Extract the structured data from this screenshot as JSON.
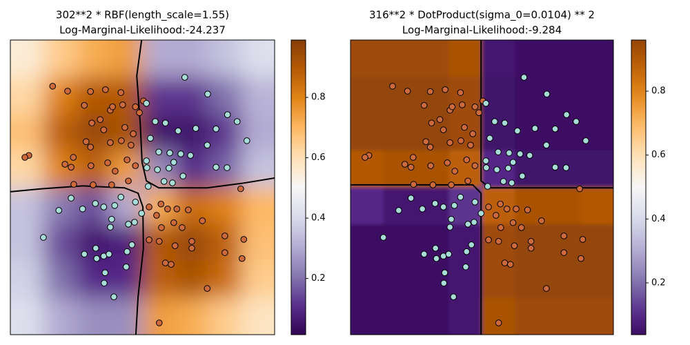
{
  "chart_data": [
    {
      "type": "heatmap",
      "title": [
        "302**2 * RBF(length_scale=1.55)",
        "Log-Marginal-Likelihood:-24.237"
      ],
      "xlim": [
        -3,
        3
      ],
      "ylim": [
        -3,
        3
      ],
      "colormap": "PuOr_r",
      "z": [
        [
          0.55,
          0.65,
          0.72,
          0.75,
          0.3,
          0.3,
          0.35,
          0.42
        ],
        [
          0.62,
          0.8,
          0.9,
          0.9,
          0.12,
          0.12,
          0.2,
          0.32
        ],
        [
          0.68,
          0.88,
          0.95,
          0.92,
          0.05,
          0.05,
          0.12,
          0.3
        ],
        [
          0.62,
          0.8,
          0.88,
          0.75,
          0.25,
          0.1,
          0.18,
          0.35
        ],
        [
          0.35,
          0.22,
          0.15,
          0.3,
          0.72,
          0.85,
          0.8,
          0.7
        ],
        [
          0.35,
          0.15,
          0.06,
          0.08,
          0.9,
          0.95,
          0.88,
          0.68
        ],
        [
          0.38,
          0.2,
          0.1,
          0.1,
          0.88,
          0.92,
          0.85,
          0.65
        ],
        [
          0.42,
          0.3,
          0.25,
          0.25,
          0.75,
          0.72,
          0.65,
          0.58
        ]
      ],
      "clim": [
        0.014,
        0.99
      ],
      "cticks": [
        0.2,
        0.4,
        0.6,
        0.8
      ],
      "contours": [
        {
          "x": [
            -0.02,
            -0.13,
            -0.05,
            -0.01,
            0.09,
            0.37,
            1.47,
            2.25,
            3.0
          ],
          "y": [
            3.0,
            2.27,
            1.29,
            0.51,
            0.13,
            -0.01,
            -0.01,
            0.08,
            0.19
          ]
        },
        {
          "x": [
            -3.0,
            -2.29,
            -1.36,
            -0.41,
            -0.1,
            0.01,
            0.02,
            -0.1,
            -0.15
          ],
          "y": [
            -0.09,
            -0.03,
            0.03,
            -0.01,
            -0.12,
            -0.4,
            -1.24,
            -2.23,
            -3.0
          ]
        }
      ],
      "series": [
        {
          "color": "#cc6a3c",
          "x": [
            -2.04,
            -1.7,
            -1.18,
            -0.84,
            -0.49,
            -1.32,
            -0.73,
            -0.68,
            -0.45,
            -0.16,
            0.02,
            -0.07,
            -0.96,
            -1.15,
            -0.88,
            -0.4,
            -0.21,
            -1.28,
            -1.18,
            -0.73,
            -0.48,
            -0.26,
            -2.58,
            -2.67,
            -1.57,
            -1.76,
            -1.62,
            -0.79,
            -1.17,
            -0.62,
            -0.35,
            -0.16,
            -1.56,
            -1.12,
            -0.7,
            -0.32,
            2.23,
            0.15,
            0.42,
            0.57,
            0.78,
            1.04,
            1.36,
            0.71,
            0.43,
            0.32,
            0.9,
            0.38,
            0.74,
            1.12,
            1.12,
            1.87,
            2.3,
            1.87,
            2.26,
            0.52,
            0.65,
            1.47,
            0.38,
            0.15
          ],
          "y": [
            2.06,
            1.96,
            1.95,
            1.99,
            1.93,
            1.67,
            1.57,
            1.64,
            1.68,
            1.64,
            1.76,
            1.52,
            1.38,
            1.31,
            1.17,
            1.22,
            1.09,
            0.93,
            0.82,
            0.91,
            0.95,
            0.86,
            0.65,
            0.61,
            0.61,
            0.47,
            0.41,
            0.5,
            0.44,
            0.33,
            0.56,
            0.44,
            0.06,
            0.05,
            0.05,
            0.13,
            -0.03,
            -0.4,
            -0.34,
            -0.44,
            -0.44,
            -0.46,
            -0.68,
            -0.72,
            -0.82,
            -0.57,
            -0.82,
            -1.1,
            -1.19,
            -1.1,
            -1.24,
            -0.99,
            -1.06,
            -1.33,
            -1.45,
            -1.54,
            -1.57,
            -2.06,
            -2.76,
            -1.07
          ]
        },
        {
          "color": "#a8dcd8",
          "x": [
            0.96,
            1.48,
            0.09,
            1.93,
            2.15,
            0.29,
            0.52,
            0.81,
            1.21,
            1.67,
            0.18,
            1.47,
            2.37,
            0.37,
            0.62,
            0.87,
            0.71,
            1.09,
            0.09,
            0.1,
            0.34,
            0.6,
            1.92,
            1.67,
            0.92,
            0.49,
            0.68,
            0.13,
            -1.62,
            -1.9,
            -1.36,
            -1.07,
            -0.88,
            -0.63,
            -0.49,
            -0.16,
            -0.7,
            -0.73,
            -0.32,
            -0.18,
            -0.02,
            -2.25,
            -1.06,
            -1.32,
            -1.04,
            -0.88,
            -0.76,
            -0.35,
            -0.24,
            -0.37,
            -0.85,
            -0.87,
            -0.65
          ],
          "y": [
            2.24,
            1.9,
            1.71,
            1.48,
            1.34,
            1.34,
            1.31,
            1.15,
            1.2,
            1.19,
            1.0,
            0.86,
            0.95,
            0.72,
            0.7,
            0.68,
            0.51,
            0.65,
            0.54,
            0.4,
            0.36,
            0.39,
            0.4,
            0.41,
            0.23,
            0.12,
            0.09,
            0.02,
            -0.22,
            -0.47,
            -0.44,
            -0.33,
            -0.4,
            -0.37,
            -0.2,
            -0.3,
            -0.65,
            -0.81,
            -0.75,
            -0.71,
            -0.53,
            -1.02,
            -1.24,
            -1.36,
            -1.45,
            -1.4,
            -1.36,
            -1.31,
            -1.17,
            -1.62,
            -1.74,
            -1.95,
            -2.23
          ]
        }
      ]
    },
    {
      "type": "heatmap",
      "title": [
        "316**2 * DotProduct(sigma_0=0.0104) ** 2",
        "Log-Marginal-Likelihood:-9.284"
      ],
      "xlim": [
        -3,
        3
      ],
      "ylim": [
        -3,
        3
      ],
      "colormap": "PuOr_r",
      "z": [
        [
          0.94,
          0.94,
          0.94,
          0.92,
          0.06,
          0.04,
          0.04,
          0.04
        ],
        [
          0.96,
          0.96,
          0.96,
          0.94,
          0.05,
          0.04,
          0.04,
          0.04
        ],
        [
          0.96,
          0.96,
          0.96,
          0.94,
          0.05,
          0.04,
          0.04,
          0.04
        ],
        [
          0.9,
          0.92,
          0.92,
          0.88,
          0.1,
          0.05,
          0.05,
          0.05
        ],
        [
          0.1,
          0.06,
          0.06,
          0.12,
          0.88,
          0.92,
          0.92,
          0.9
        ],
        [
          0.04,
          0.04,
          0.04,
          0.06,
          0.94,
          0.96,
          0.96,
          0.96
        ],
        [
          0.04,
          0.04,
          0.04,
          0.06,
          0.94,
          0.96,
          0.96,
          0.96
        ],
        [
          0.04,
          0.04,
          0.04,
          0.06,
          0.92,
          0.94,
          0.94,
          0.94
        ]
      ],
      "clim": [
        0.038,
        0.96
      ],
      "cticks": [
        0.2,
        0.4,
        0.6,
        0.8
      ],
      "contours": [
        {
          "x": [
            -0.02,
            -0.02,
            0.18,
            3.0
          ],
          "y": [
            3.0,
            0.13,
            -0.01,
            -0.01
          ]
        },
        {
          "x": [
            -3.0,
            -0.21,
            -0.02,
            -0.02
          ],
          "y": [
            0.05,
            0.05,
            -0.12,
            -3.0
          ]
        }
      ],
      "series": [
        {
          "color": "#cc6a3c",
          "x": [
            -2.04,
            -1.7,
            -1.18,
            -0.84,
            -0.49,
            -1.32,
            -0.73,
            -0.68,
            -0.45,
            -0.16,
            0.02,
            -0.07,
            -0.96,
            -1.15,
            -0.88,
            -0.4,
            -0.21,
            -1.28,
            -1.18,
            -0.73,
            -0.48,
            -0.26,
            -2.58,
            -2.67,
            -1.57,
            -1.76,
            -1.62,
            -0.79,
            -1.17,
            -0.62,
            -0.35,
            -0.16,
            -1.56,
            -1.12,
            -0.7,
            -0.32,
            2.23,
            0.15,
            0.42,
            0.57,
            0.78,
            1.04,
            1.36,
            0.71,
            0.43,
            0.32,
            0.9,
            0.38,
            0.74,
            1.12,
            1.12,
            1.87,
            2.3,
            1.87,
            2.26,
            0.52,
            0.65,
            1.47,
            0.38,
            0.15
          ],
          "y": [
            2.06,
            1.96,
            1.95,
            1.99,
            1.93,
            1.67,
            1.57,
            1.64,
            1.68,
            1.64,
            1.76,
            1.52,
            1.38,
            1.31,
            1.17,
            1.22,
            1.09,
            0.93,
            0.82,
            0.91,
            0.95,
            0.86,
            0.65,
            0.61,
            0.61,
            0.47,
            0.41,
            0.5,
            0.44,
            0.33,
            0.56,
            0.44,
            0.06,
            0.05,
            0.05,
            0.13,
            -0.03,
            -0.4,
            -0.34,
            -0.44,
            -0.44,
            -0.46,
            -0.68,
            -0.72,
            -0.82,
            -0.57,
            -0.82,
            -1.1,
            -1.19,
            -1.1,
            -1.24,
            -0.99,
            -1.06,
            -1.33,
            -1.45,
            -1.54,
            -1.57,
            -2.06,
            -2.76,
            -1.07
          ]
        },
        {
          "color": "#a8dcd8",
          "x": [
            0.96,
            1.48,
            0.09,
            1.93,
            2.15,
            0.29,
            0.52,
            0.81,
            1.21,
            1.67,
            0.18,
            1.47,
            2.37,
            0.37,
            0.62,
            0.87,
            0.71,
            1.09,
            0.09,
            0.1,
            0.34,
            0.6,
            1.92,
            1.67,
            0.92,
            0.49,
            0.68,
            0.13,
            -1.62,
            -1.9,
            -1.36,
            -1.07,
            -0.88,
            -0.63,
            -0.49,
            -0.16,
            -0.7,
            -0.73,
            -0.32,
            -0.18,
            -0.02,
            -2.25,
            -1.06,
            -1.32,
            -1.04,
            -0.88,
            -0.76,
            -0.35,
            -0.24,
            -0.37,
            -0.85,
            -0.87,
            -0.65
          ],
          "y": [
            2.24,
            1.9,
            1.71,
            1.48,
            1.34,
            1.34,
            1.31,
            1.15,
            1.2,
            1.19,
            1.0,
            0.86,
            0.95,
            0.72,
            0.7,
            0.68,
            0.51,
            0.65,
            0.54,
            0.4,
            0.36,
            0.39,
            0.4,
            0.41,
            0.23,
            0.12,
            0.09,
            0.02,
            -0.22,
            -0.47,
            -0.44,
            -0.33,
            -0.4,
            -0.37,
            -0.2,
            -0.3,
            -0.65,
            -0.81,
            -0.75,
            -0.71,
            -0.53,
            -1.02,
            -1.24,
            -1.36,
            -1.45,
            -1.4,
            -1.36,
            -1.31,
            -1.17,
            -1.62,
            -1.74,
            -1.95,
            -2.23
          ]
        }
      ]
    }
  ]
}
